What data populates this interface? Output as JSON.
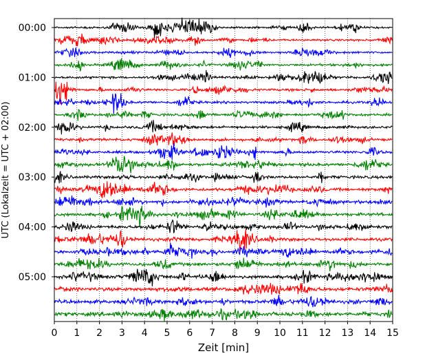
{
  "chart_data": {
    "type": "line",
    "chart_kind": "helicorder",
    "xlabel": "Zeit  [min]",
    "ylabel": "UTC (Lokalzeit = UTC + 02:00)",
    "xlim": [
      0,
      15
    ],
    "x_ticks": [
      "0",
      "1",
      "2",
      "3",
      "4",
      "5",
      "6",
      "7",
      "8",
      "9",
      "10",
      "11",
      "12",
      "13",
      "14",
      "15"
    ],
    "y_ticks": [
      "00:00",
      "01:00",
      "02:00",
      "03:00",
      "04:00",
      "05:00"
    ],
    "grid": "vertical dotted lines at each minute",
    "trace_colors": [
      "#000000",
      "#ff0000",
      "#0000ff",
      "#008000"
    ],
    "trace_count": 24,
    "trace_interval_minutes": 15
  }
}
